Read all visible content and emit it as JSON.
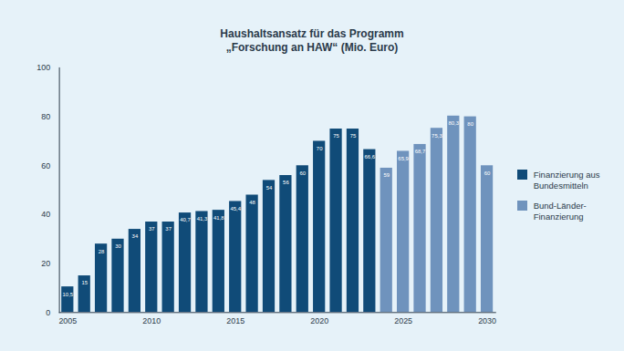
{
  "chart_data": {
    "type": "bar",
    "title": "Haushaltsansatz für das Programm\n„Forschung an HAW“ (Mio. Euro)",
    "x": [
      2005,
      2006,
      2007,
      2008,
      2009,
      2010,
      2011,
      2012,
      2013,
      2014,
      2015,
      2016,
      2017,
      2018,
      2019,
      2020,
      2021,
      2022,
      2023,
      2024,
      2025,
      2026,
      2027,
      2028,
      2029,
      2030
    ],
    "series": [
      {
        "name": "Finanzierung aus Bundesmitteln",
        "color": "#104b78",
        "values": [
          10.5,
          15,
          28,
          30,
          34,
          37,
          37,
          40.7,
          41.3,
          41.8,
          45.4,
          48,
          54,
          56,
          60,
          70,
          75,
          75,
          66.6,
          null,
          null,
          null,
          null,
          null,
          null,
          null
        ],
        "value_labels": [
          "10,5",
          "15",
          "28",
          "30",
          "34",
          "37",
          "37",
          "40,7",
          "41,3",
          "41,8",
          "45,4",
          "48",
          "54",
          "56",
          "60",
          "70",
          "75",
          "75",
          "66,6",
          null,
          null,
          null,
          null,
          null,
          null,
          null
        ]
      },
      {
        "name": "Bund-Länder-Finanzierung",
        "color": "#6f93bd",
        "values": [
          null,
          null,
          null,
          null,
          null,
          null,
          null,
          null,
          null,
          null,
          null,
          null,
          null,
          null,
          null,
          null,
          null,
          null,
          null,
          59,
          65.9,
          68.7,
          75.3,
          80.3,
          80,
          60
        ],
        "value_labels": [
          null,
          null,
          null,
          null,
          null,
          null,
          null,
          null,
          null,
          null,
          null,
          null,
          null,
          null,
          null,
          null,
          null,
          null,
          null,
          "59",
          "65,9",
          "68,7",
          "75,3",
          "80,3",
          "80",
          "60"
        ]
      }
    ],
    "xlim": [
      2004.5,
      2030.5
    ],
    "xticks": [
      2005,
      2010,
      2015,
      2020,
      2025,
      2030
    ],
    "ylim": [
      0,
      100
    ],
    "yticks": [
      0,
      20,
      40,
      60,
      80,
      100
    ],
    "grid": false,
    "legend": "right",
    "data_labels": true
  }
}
